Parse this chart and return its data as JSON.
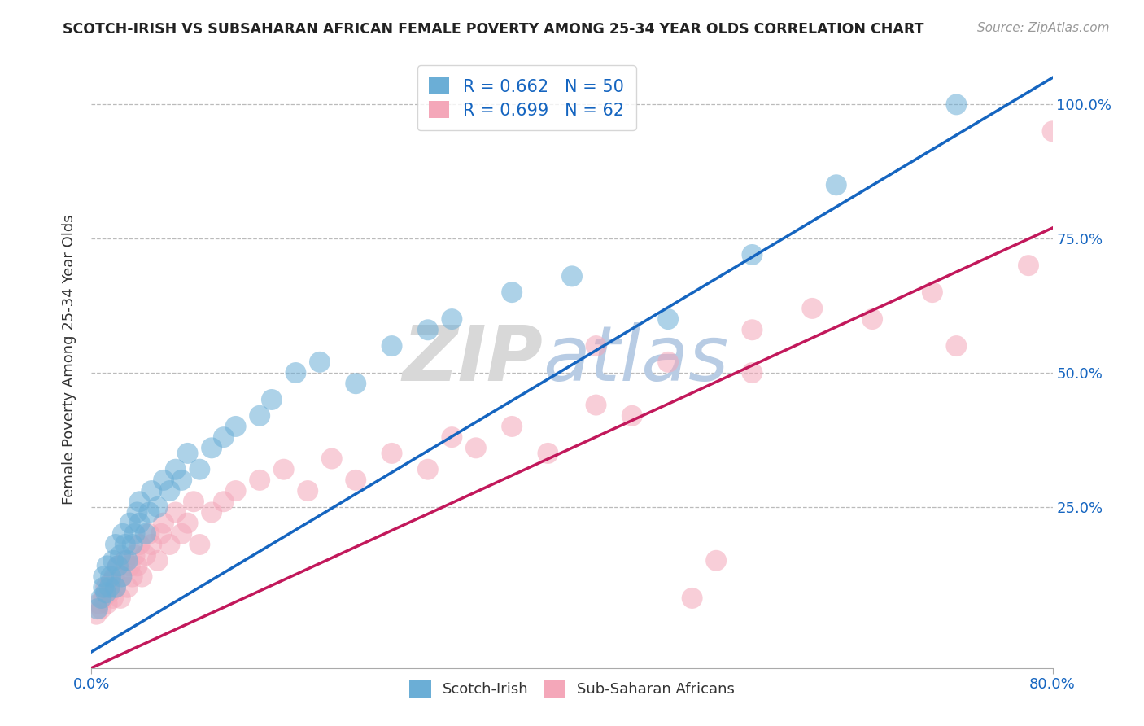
{
  "title": "SCOTCH-IRISH VS SUBSAHARAN AFRICAN FEMALE POVERTY AMONG 25-34 YEAR OLDS CORRELATION CHART",
  "source": "Source: ZipAtlas.com",
  "ylabel": "Female Poverty Among 25-34 Year Olds",
  "xlim": [
    0.0,
    0.8
  ],
  "ylim": [
    -0.05,
    1.1
  ],
  "xtick_labels": [
    "0.0%",
    "80.0%"
  ],
  "xtick_positions": [
    0.0,
    0.8
  ],
  "ytick_labels": [
    "25.0%",
    "50.0%",
    "75.0%",
    "100.0%"
  ],
  "ytick_positions": [
    0.25,
    0.5,
    0.75,
    1.0
  ],
  "blue_R": 0.662,
  "blue_N": 50,
  "pink_R": 0.699,
  "pink_N": 62,
  "blue_color": "#6baed6",
  "pink_color": "#f4a7b9",
  "blue_line_color": "#1565c0",
  "pink_line_color": "#c2185b",
  "legend_label_blue": "Scotch-Irish",
  "legend_label_pink": "Sub-Saharan Africans",
  "background_color": "#ffffff",
  "grid_color": "#bbbbbb",
  "title_color": "#222222",
  "axis_label_color": "#1565c0",
  "watermark_zip": "ZIP",
  "watermark_atlas": "atlas",
  "blue_line_x0": 0.0,
  "blue_line_x1": 0.8,
  "blue_line_y0": -0.02,
  "blue_line_y1": 1.05,
  "pink_line_x0": 0.0,
  "pink_line_x1": 0.8,
  "pink_line_y0": -0.05,
  "pink_line_y1": 0.77,
  "blue_scatter_x": [
    0.005,
    0.008,
    0.01,
    0.01,
    0.012,
    0.013,
    0.015,
    0.016,
    0.018,
    0.02,
    0.02,
    0.022,
    0.024,
    0.025,
    0.026,
    0.028,
    0.03,
    0.032,
    0.034,
    0.036,
    0.038,
    0.04,
    0.04,
    0.045,
    0.048,
    0.05,
    0.055,
    0.06,
    0.065,
    0.07,
    0.075,
    0.08,
    0.09,
    0.1,
    0.11,
    0.12,
    0.14,
    0.15,
    0.17,
    0.19,
    0.22,
    0.25,
    0.28,
    0.3,
    0.35,
    0.4,
    0.48,
    0.55,
    0.62,
    0.72
  ],
  "blue_scatter_y": [
    0.06,
    0.08,
    0.1,
    0.12,
    0.09,
    0.14,
    0.1,
    0.12,
    0.15,
    0.1,
    0.18,
    0.14,
    0.16,
    0.12,
    0.2,
    0.18,
    0.15,
    0.22,
    0.18,
    0.2,
    0.24,
    0.22,
    0.26,
    0.2,
    0.24,
    0.28,
    0.25,
    0.3,
    0.28,
    0.32,
    0.3,
    0.35,
    0.32,
    0.36,
    0.38,
    0.4,
    0.42,
    0.45,
    0.5,
    0.52,
    0.48,
    0.55,
    0.58,
    0.6,
    0.65,
    0.68,
    0.6,
    0.72,
    0.85,
    1.0
  ],
  "pink_scatter_x": [
    0.004,
    0.006,
    0.008,
    0.01,
    0.012,
    0.013,
    0.015,
    0.016,
    0.018,
    0.019,
    0.02,
    0.022,
    0.024,
    0.025,
    0.028,
    0.03,
    0.032,
    0.034,
    0.036,
    0.038,
    0.04,
    0.042,
    0.045,
    0.048,
    0.05,
    0.055,
    0.058,
    0.06,
    0.065,
    0.07,
    0.075,
    0.08,
    0.085,
    0.09,
    0.1,
    0.11,
    0.12,
    0.14,
    0.16,
    0.18,
    0.2,
    0.22,
    0.25,
    0.28,
    0.3,
    0.32,
    0.35,
    0.38,
    0.42,
    0.45,
    0.5,
    0.52,
    0.55,
    0.42,
    0.48,
    0.55,
    0.6,
    0.65,
    0.7,
    0.72,
    0.78,
    0.8
  ],
  "pink_scatter_y": [
    0.05,
    0.07,
    0.06,
    0.08,
    0.1,
    0.07,
    0.09,
    0.11,
    0.08,
    0.12,
    0.1,
    0.14,
    0.08,
    0.12,
    0.15,
    0.1,
    0.14,
    0.12,
    0.16,
    0.14,
    0.18,
    0.12,
    0.16,
    0.2,
    0.18,
    0.15,
    0.2,
    0.22,
    0.18,
    0.24,
    0.2,
    0.22,
    0.26,
    0.18,
    0.24,
    0.26,
    0.28,
    0.3,
    0.32,
    0.28,
    0.34,
    0.3,
    0.35,
    0.32,
    0.38,
    0.36,
    0.4,
    0.35,
    0.44,
    0.42,
    0.08,
    0.15,
    0.5,
    0.55,
    0.52,
    0.58,
    0.62,
    0.6,
    0.65,
    0.55,
    0.7,
    0.95
  ]
}
